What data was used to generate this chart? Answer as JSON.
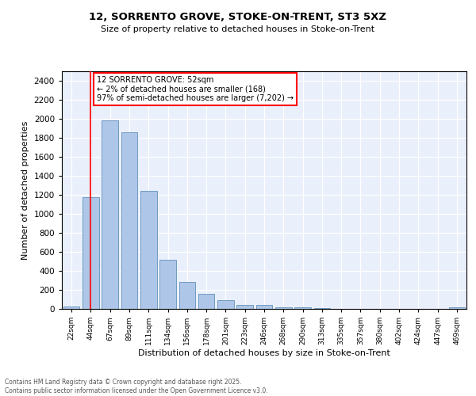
{
  "title1": "12, SORRENTO GROVE, STOKE-ON-TRENT, ST3 5XZ",
  "title2": "Size of property relative to detached houses in Stoke-on-Trent",
  "xlabel": "Distribution of detached houses by size in Stoke-on-Trent",
  "ylabel": "Number of detached properties",
  "bar_labels": [
    "22sqm",
    "44sqm",
    "67sqm",
    "89sqm",
    "111sqm",
    "134sqm",
    "156sqm",
    "178sqm",
    "201sqm",
    "223sqm",
    "246sqm",
    "268sqm",
    "290sqm",
    "313sqm",
    "335sqm",
    "357sqm",
    "380sqm",
    "402sqm",
    "424sqm",
    "447sqm",
    "469sqm"
  ],
  "bar_values": [
    25,
    1175,
    1980,
    1860,
    1245,
    520,
    280,
    155,
    95,
    45,
    45,
    20,
    15,
    5,
    2,
    2,
    2,
    2,
    2,
    2,
    15
  ],
  "bar_color": "#aec6e8",
  "bar_edge_color": "#6090bb",
  "red_line_x": 1.0,
  "annotation_text": "12 SORRENTO GROVE: 52sqm\n← 2% of detached houses are smaller (168)\n97% of semi-detached houses are larger (7,202) →",
  "annotation_box_color": "white",
  "annotation_box_edge_color": "red",
  "ylim": [
    0,
    2500
  ],
  "yticks": [
    0,
    200,
    400,
    600,
    800,
    1000,
    1200,
    1400,
    1600,
    1800,
    2000,
    2200,
    2400
  ],
  "background_color": "#eaf0fb",
  "grid_color": "white",
  "footer1": "Contains HM Land Registry data © Crown copyright and database right 2025.",
  "footer2": "Contains public sector information licensed under the Open Government Licence v3.0."
}
